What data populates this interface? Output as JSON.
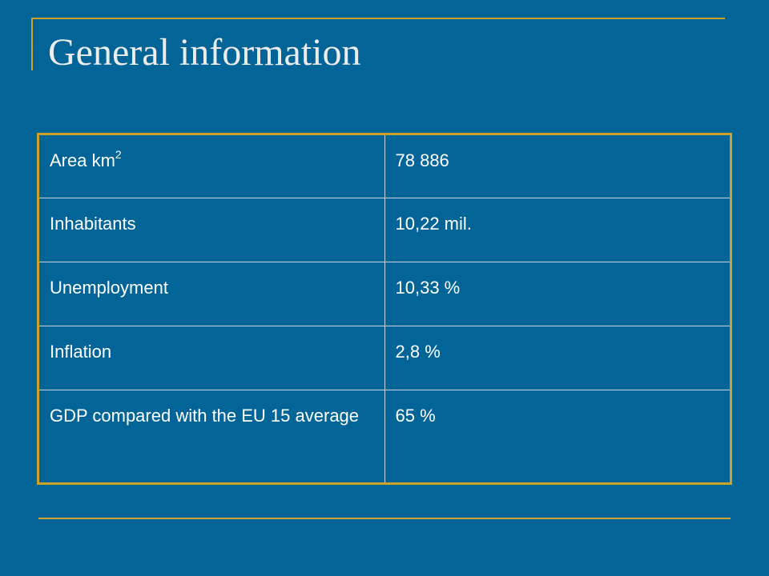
{
  "header": {
    "title": "General information"
  },
  "table": {
    "rows": [
      [
        {
          "text": "Area km",
          "superscript": "2"
        },
        "78 886"
      ],
      [
        "Inhabitants",
        "10,22 mil."
      ],
      [
        "Unemployment",
        "10,33 %"
      ],
      [
        "Inflation",
        "2,8 %"
      ],
      [
        "GDP compared with the EU 15 average",
        "65 %"
      ]
    ]
  }
}
